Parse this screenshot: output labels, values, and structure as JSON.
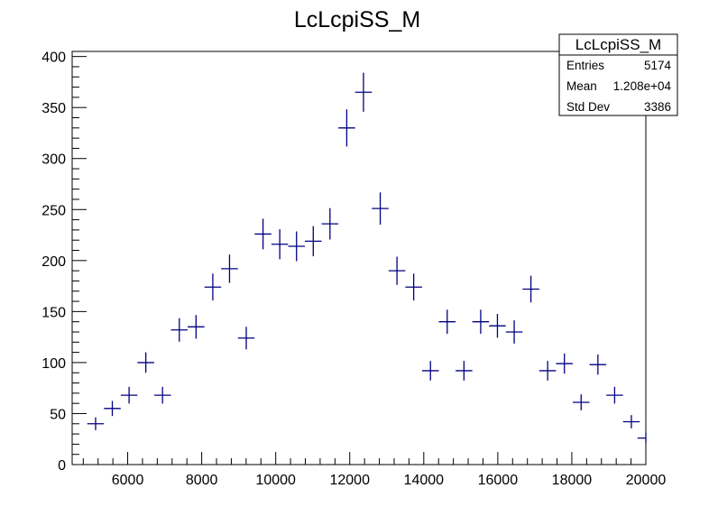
{
  "chart_data": {
    "type": "scatter",
    "title": "LcLcpiSS_M",
    "xlabel": "",
    "ylabel": "",
    "xlim": [
      4500,
      20000
    ],
    "ylim": [
      0,
      405
    ],
    "x_ticks": [
      6000,
      8000,
      10000,
      12000,
      14000,
      16000,
      18000,
      20000
    ],
    "y_ticks": [
      0,
      50,
      100,
      150,
      200,
      250,
      300,
      350,
      400
    ],
    "x_tick_labels": [
      "6000",
      "8000",
      "10000",
      "12000",
      "14000",
      "16000",
      "18000",
      "20000"
    ],
    "y_tick_labels": [
      "0",
      "50",
      "100",
      "150",
      "200",
      "250",
      "300",
      "350",
      "400"
    ],
    "bin_width": 452,
    "marker_color": "#000080",
    "series": [
      {
        "x": [
          5133,
          5585,
          6038,
          6490,
          6942,
          7395,
          7847,
          8300,
          8752,
          9204,
          9657,
          10109,
          10562,
          11014,
          11466,
          11919,
          12371,
          12824,
          13276,
          13728,
          14181,
          14633,
          15086,
          15538,
          15990,
          16443,
          16895,
          17347,
          17800,
          18252,
          18705,
          19157,
          19609,
          20000
        ],
        "values": [
          40,
          55,
          68,
          100,
          68,
          132,
          135,
          174,
          192,
          124,
          226,
          216,
          214,
          219,
          236,
          330,
          365,
          251,
          190,
          174,
          92,
          140,
          92,
          140,
          136,
          130,
          172,
          92,
          99,
          61,
          98,
          68,
          42,
          26
        ],
        "errors": [
          6.3,
          7.4,
          8.2,
          10,
          8.2,
          11.5,
          11.6,
          13.2,
          13.9,
          11.1,
          15,
          14.7,
          14.6,
          14.8,
          15.4,
          18.2,
          19.1,
          15.8,
          13.8,
          13.2,
          9.6,
          11.8,
          9.6,
          11.8,
          11.7,
          11.4,
          13.1,
          9.6,
          9.9,
          7.8,
          9.9,
          8.2,
          6.5,
          5.1
        ]
      }
    ],
    "legend": "none",
    "grid": false,
    "stats_box": {
      "title": "LcLcpiSS_M",
      "rows": [
        {
          "label": "Entries",
          "value": "5174"
        },
        {
          "label": "Mean",
          "value": "1.208e+04"
        },
        {
          "label": "Std Dev",
          "value": "3386"
        }
      ],
      "position": "top-right"
    }
  }
}
